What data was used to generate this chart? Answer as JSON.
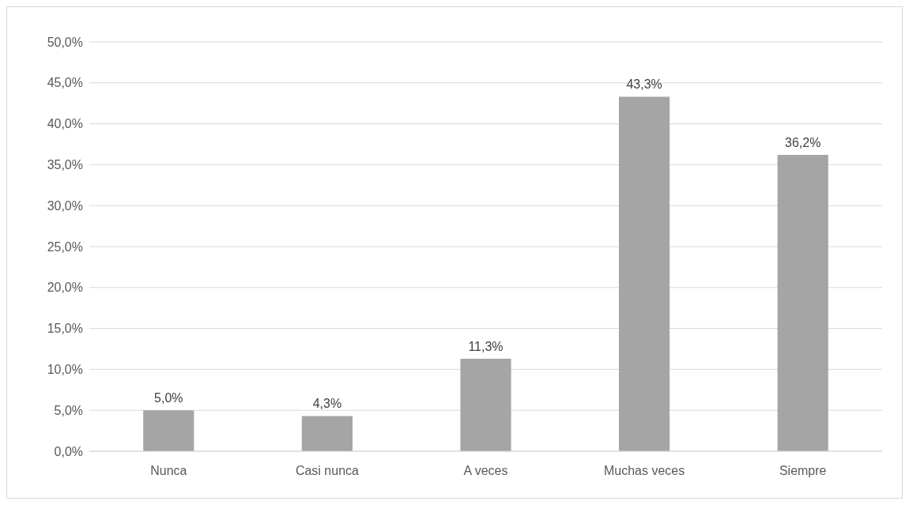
{
  "chart_data": {
    "type": "bar",
    "categories": [
      "Nunca",
      "Casi nunca",
      "A veces",
      "Muchas veces",
      "Siempre"
    ],
    "values": [
      5.0,
      4.3,
      11.3,
      43.3,
      36.2
    ],
    "value_labels": [
      "5,0%",
      "4,3%",
      "11,3%",
      "43,3%",
      "36,2%"
    ],
    "color": "#a5a5a5",
    "ylim": [
      0,
      50
    ],
    "yticks": [
      {
        "value": 0,
        "label": "0,0%"
      },
      {
        "value": 5,
        "label": "5,0%"
      },
      {
        "value": 10,
        "label": "10,0%"
      },
      {
        "value": 15,
        "label": "15,0%"
      },
      {
        "value": 20,
        "label": "20,0%"
      },
      {
        "value": 25,
        "label": "25,0%"
      },
      {
        "value": 30,
        "label": "30,0%"
      },
      {
        "value": 35,
        "label": "35,0%"
      },
      {
        "value": 40,
        "label": "40,0%"
      },
      {
        "value": 45,
        "label": "45,0%"
      },
      {
        "value": 50,
        "label": "50,0%"
      }
    ],
    "grid": "y"
  }
}
